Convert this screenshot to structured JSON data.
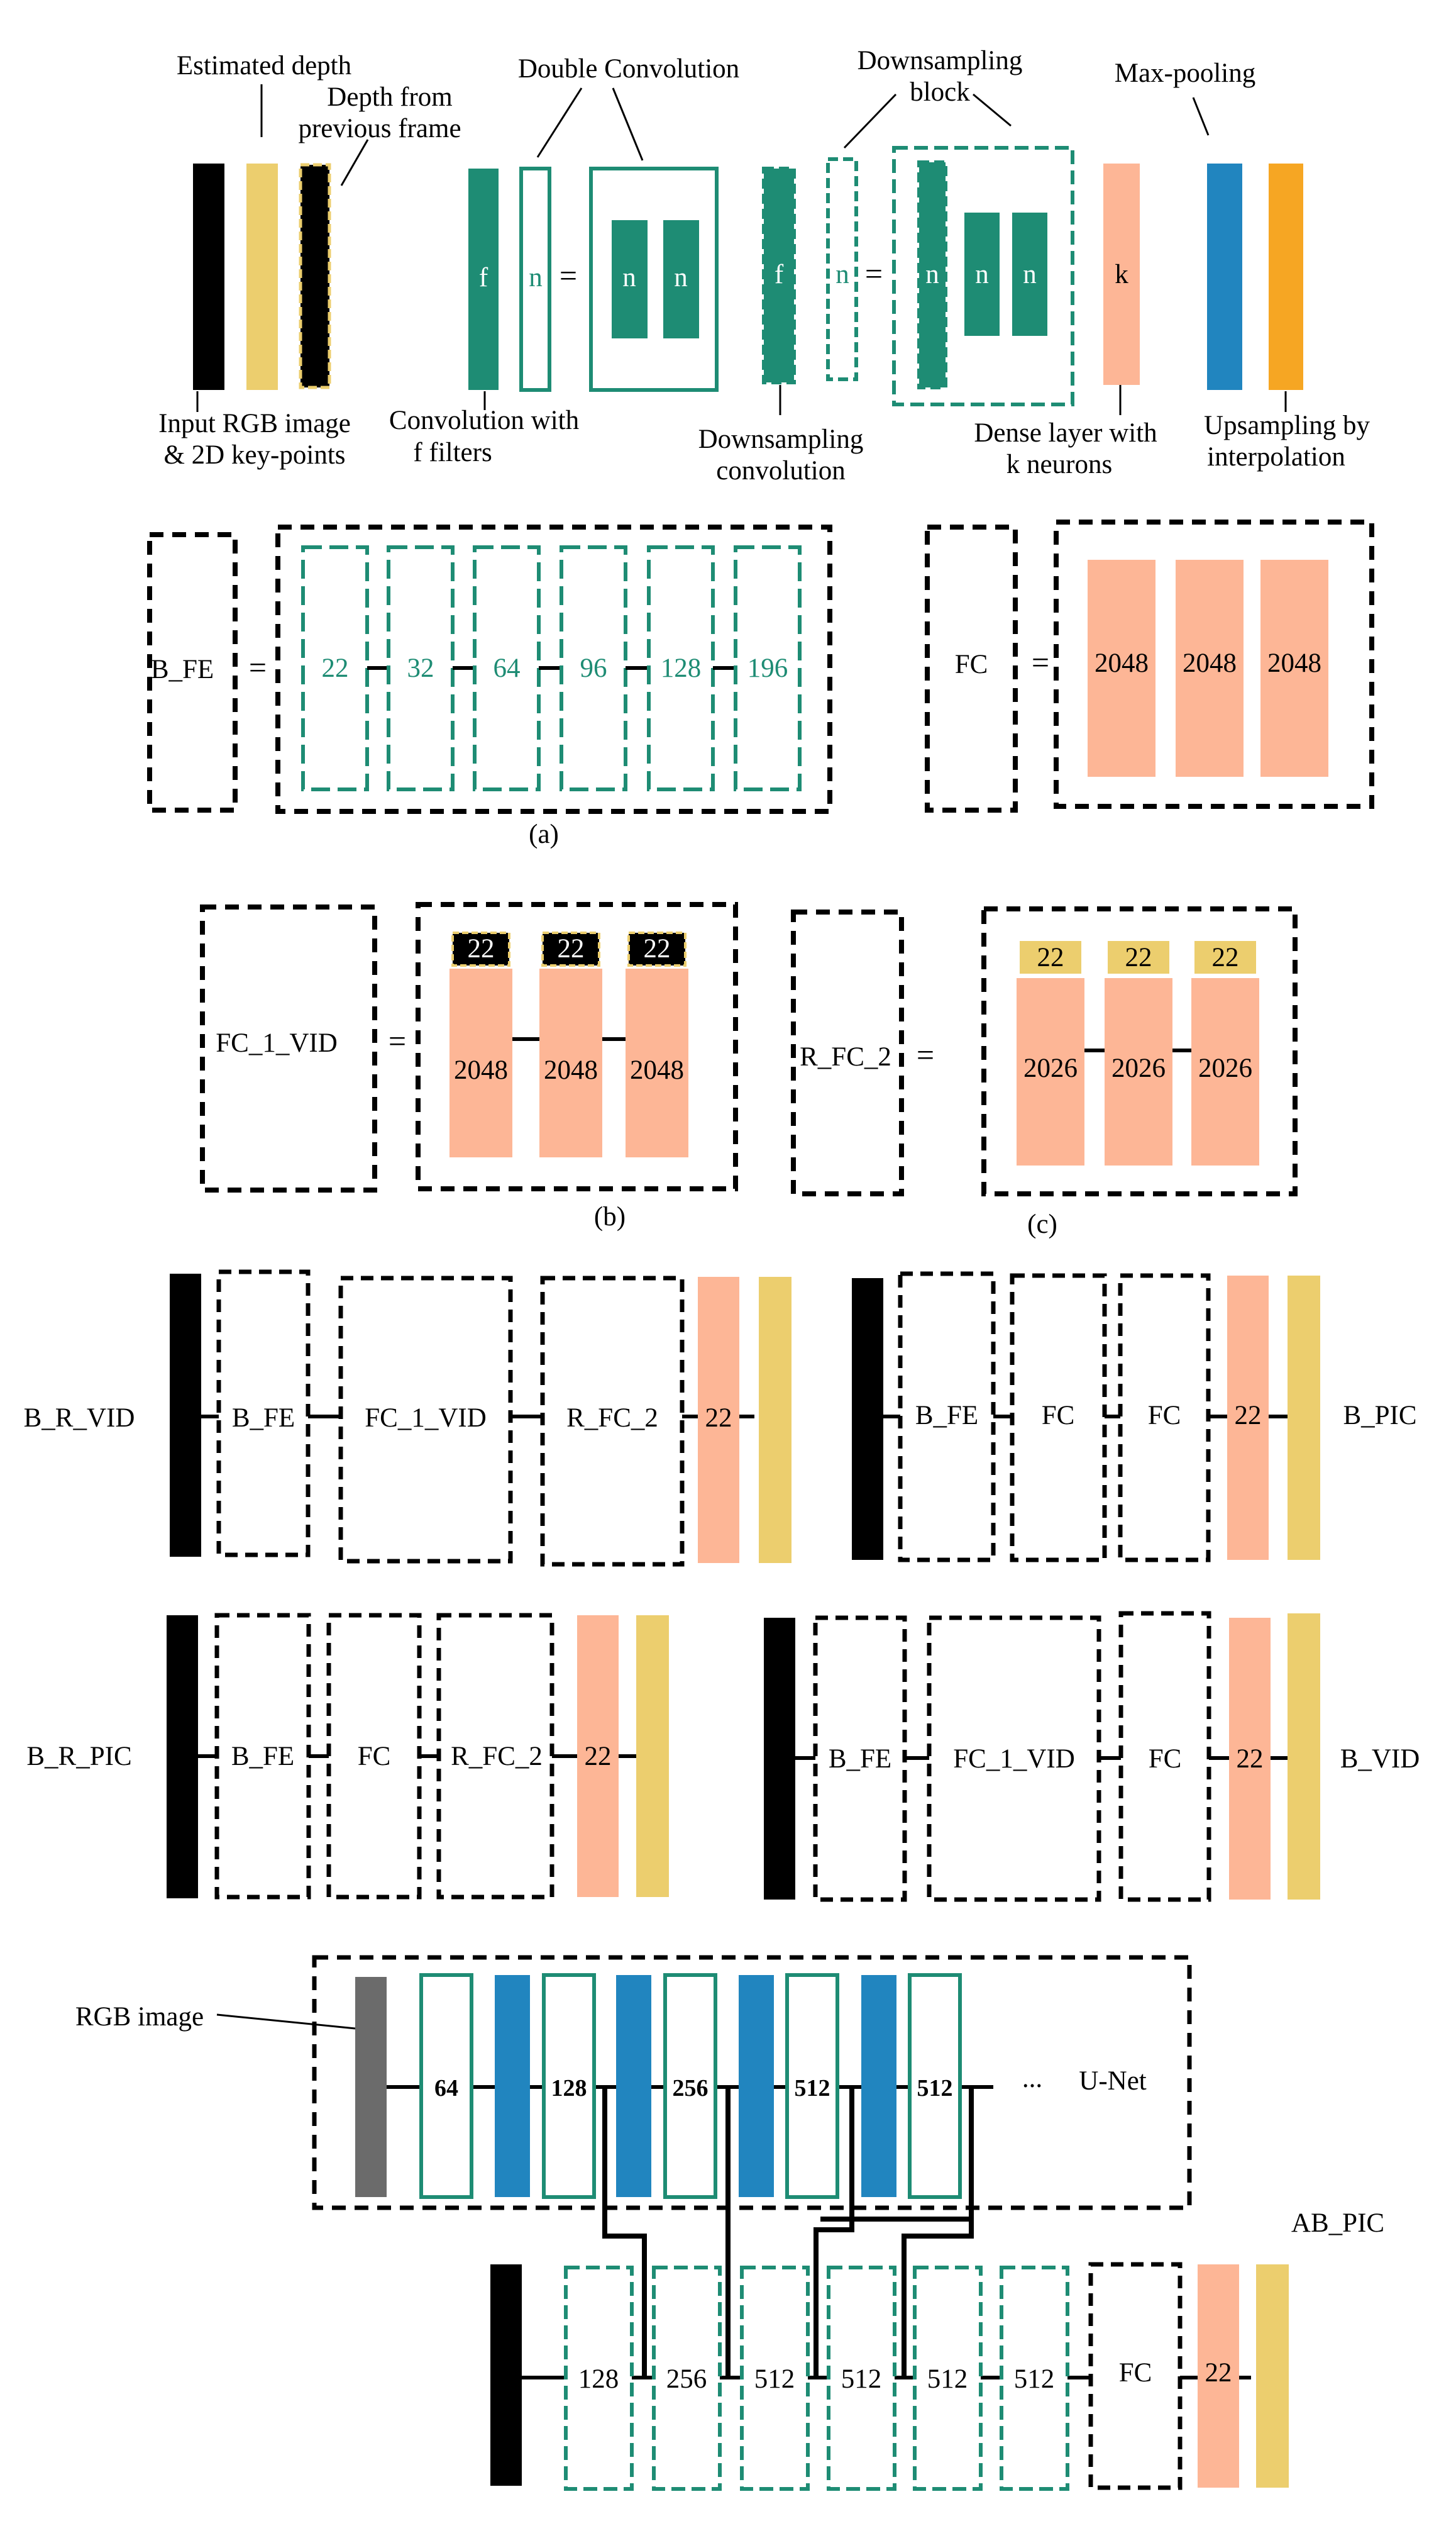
{
  "colors": {
    "black": "#000000",
    "teal": "#1e8c74",
    "yellow": "#ecce6e",
    "salmon": "#fdb696",
    "blue": "#2185bf",
    "orange": "#f6a623",
    "gray": "#6b6b6b",
    "white": "#ffffff"
  },
  "legend": {
    "estimated_depth": "Estimated depth",
    "depth_prev_line1": "Depth from",
    "depth_prev_line2": "previous frame",
    "double_conv": "Double Convolution",
    "down_block_line1": "Downsampling",
    "down_block_line2": "block",
    "max_pooling": "Max-pooling",
    "input_line1": "Input RGB image",
    "input_line2": "& 2D key-points",
    "conv_line1": "Convolution with",
    "conv_line2": "f filters",
    "down_conv_line1": "Downsampling",
    "down_conv_line2": "convolution",
    "dense_line1": "Dense layer with",
    "dense_line2": "k neurons",
    "upsampling_line1": "Upsampling by",
    "upsampling_line2": "interpolation",
    "f": "f",
    "n": "n",
    "k": "k",
    "eq": "="
  },
  "panel_a": {
    "bfe_label": "B_FE",
    "eq": "=",
    "filters": [
      "22",
      "32",
      "64",
      "96",
      "128",
      "196"
    ],
    "fc_label": "FC",
    "fc_units": [
      "2048",
      "2048",
      "2048"
    ],
    "caption": "(a)"
  },
  "panel_b": {
    "label": "FC_1_VID",
    "eq": "=",
    "tops": [
      "22",
      "22",
      "22"
    ],
    "units": [
      "2048",
      "2048",
      "2048"
    ],
    "caption": "(b)"
  },
  "panel_c": {
    "label": "R_FC_2",
    "eq": "=",
    "tops": [
      "22",
      "22",
      "22"
    ],
    "units": [
      "2026",
      "2026",
      "2026"
    ],
    "caption": "(c)"
  },
  "models": {
    "b_r_vid": {
      "name": "B_R_VID",
      "blocks": [
        "B_FE",
        "FC_1_VID",
        "R_FC_2"
      ],
      "out": "22"
    },
    "b_pic": {
      "name": "B_PIC",
      "blocks": [
        "B_FE",
        "FC",
        "FC"
      ],
      "out": "22"
    },
    "b_r_pic": {
      "name": "B_R_PIC",
      "blocks": [
        "B_FE",
        "FC",
        "R_FC_2"
      ],
      "out": "22"
    },
    "b_vid": {
      "name": "B_VID",
      "blocks": [
        "B_FE",
        "FC_1_VID",
        "FC"
      ],
      "out": "22"
    }
  },
  "ab_pic": {
    "rgb_label": "RGB image",
    "unet_label": "U-Net",
    "unet_filters": [
      "64",
      "128",
      "256",
      "512",
      "512"
    ],
    "ellipsis": "...",
    "name": "AB_PIC",
    "down_filters": [
      "128",
      "256",
      "512",
      "512",
      "512",
      "512"
    ],
    "fc": "FC",
    "out": "22"
  }
}
